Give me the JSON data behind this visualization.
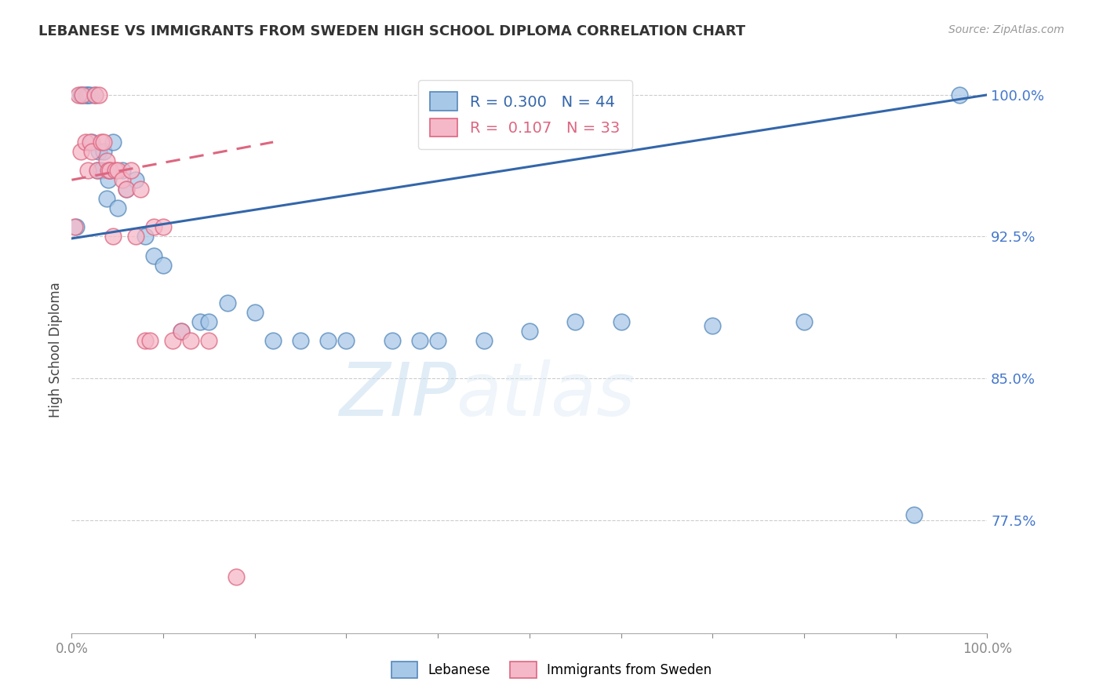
{
  "title": "LEBANESE VS IMMIGRANTS FROM SWEDEN HIGH SCHOOL DIPLOMA CORRELATION CHART",
  "source": "Source: ZipAtlas.com",
  "ylabel": "High School Diploma",
  "xlim": [
    0.0,
    1.0
  ],
  "ylim": [
    0.715,
    1.015
  ],
  "yticks": [
    0.775,
    0.85,
    0.925,
    1.0
  ],
  "ytick_labels": [
    "77.5%",
    "85.0%",
    "92.5%",
    "100.0%"
  ],
  "xticks": [
    0.0,
    0.1,
    0.2,
    0.3,
    0.4,
    0.5,
    0.6,
    0.7,
    0.8,
    0.9,
    1.0
  ],
  "xtick_labels": [
    "0.0%",
    "",
    "",
    "",
    "",
    "",
    "",
    "",
    "",
    "",
    "100.0%"
  ],
  "blue_R": 0.3,
  "blue_N": 44,
  "pink_R": 0.107,
  "pink_N": 33,
  "blue_color": "#a8c8e8",
  "pink_color": "#f5b8c8",
  "blue_edge_color": "#5588bb",
  "pink_edge_color": "#dd6680",
  "blue_line_color": "#3366aa",
  "pink_line_color": "#dd6680",
  "legend_label_blue": "Lebanese",
  "legend_label_pink": "Immigrants from Sweden",
  "watermark_zip": "ZIP",
  "watermark_atlas": "atlas",
  "blue_x": [
    0.005,
    0.01,
    0.012,
    0.015,
    0.017,
    0.018,
    0.02,
    0.022,
    0.025,
    0.028,
    0.03,
    0.032,
    0.035,
    0.038,
    0.04,
    0.042,
    0.045,
    0.05,
    0.055,
    0.06,
    0.07,
    0.08,
    0.09,
    0.1,
    0.12,
    0.14,
    0.15,
    0.17,
    0.2,
    0.22,
    0.25,
    0.28,
    0.3,
    0.35,
    0.38,
    0.4,
    0.45,
    0.5,
    0.55,
    0.6,
    0.7,
    0.8,
    0.92,
    0.97
  ],
  "blue_y": [
    0.93,
    1.0,
    1.0,
    1.0,
    1.0,
    1.0,
    1.0,
    0.975,
    1.0,
    0.96,
    0.97,
    0.96,
    0.97,
    0.945,
    0.955,
    0.96,
    0.975,
    0.94,
    0.96,
    0.95,
    0.955,
    0.925,
    0.915,
    0.91,
    0.875,
    0.88,
    0.88,
    0.89,
    0.885,
    0.87,
    0.87,
    0.87,
    0.87,
    0.87,
    0.87,
    0.87,
    0.87,
    0.875,
    0.88,
    0.88,
    0.878,
    0.88,
    0.778,
    1.0
  ],
  "pink_x": [
    0.003,
    0.007,
    0.01,
    0.012,
    0.015,
    0.018,
    0.02,
    0.022,
    0.025,
    0.028,
    0.03,
    0.032,
    0.035,
    0.038,
    0.04,
    0.042,
    0.045,
    0.048,
    0.05,
    0.055,
    0.06,
    0.065,
    0.07,
    0.075,
    0.08,
    0.085,
    0.09,
    0.1,
    0.11,
    0.12,
    0.13,
    0.15,
    0.18
  ],
  "pink_y": [
    0.93,
    1.0,
    0.97,
    1.0,
    0.975,
    0.96,
    0.975,
    0.97,
    1.0,
    0.96,
    1.0,
    0.975,
    0.975,
    0.965,
    0.96,
    0.96,
    0.925,
    0.96,
    0.96,
    0.955,
    0.95,
    0.96,
    0.925,
    0.95,
    0.87,
    0.87,
    0.93,
    0.93,
    0.87,
    0.875,
    0.87,
    0.87,
    0.745
  ],
  "blue_trendline_x": [
    0.0,
    1.0
  ],
  "blue_trendline_y": [
    0.924,
    1.0
  ],
  "pink_trendline_x": [
    0.0,
    0.22
  ],
  "pink_trendline_y": [
    0.955,
    0.975
  ]
}
